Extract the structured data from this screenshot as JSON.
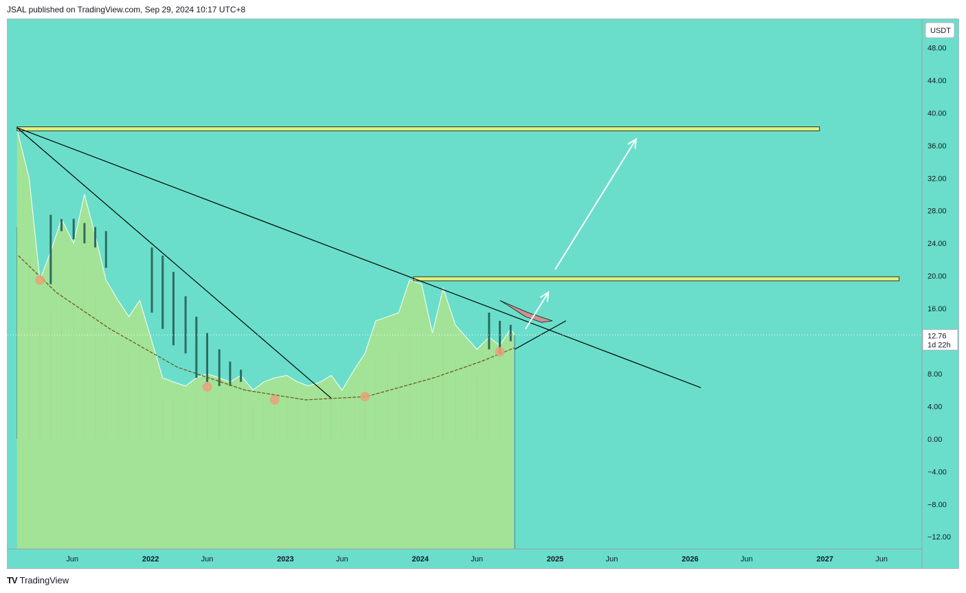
{
  "header": {
    "text": "JSAL published on TradingView.com, Sep 29, 2024 10:17 UTC+8"
  },
  "footer": {
    "logo": "TV",
    "text": "TradingView"
  },
  "colors": {
    "background": "#6adecb",
    "area_fill": "#a6e393",
    "area_line": "#ffffff",
    "candle": "#2c6a60",
    "wick_line": "#5c4a1e",
    "trend_line": "#000000",
    "zone_fill": "#dff07a",
    "zone_border": "#333333",
    "arc_curve": "#6b5a1e",
    "marker": "#e8a27a",
    "arrow": "#ffffff",
    "shape": "#d48a8a"
  },
  "chart_data": {
    "type": "area",
    "currency_label": "USDT",
    "ylim": [
      -13.5,
      51.5
    ],
    "y_ticks": [
      "48.00",
      "44.00",
      "40.00",
      "36.00",
      "32.00",
      "28.00",
      "24.00",
      "20.00",
      "16.00",
      "12.00",
      "8.00",
      "4.00",
      "0.00",
      "−4.00",
      "−8.00",
      "−12.00"
    ],
    "x_ticks": [
      {
        "label": "Jun",
        "t": 2021.42,
        "year": false
      },
      {
        "label": "2022",
        "t": 2022.0,
        "year": true
      },
      {
        "label": "Jun",
        "t": 2022.42,
        "year": false
      },
      {
        "label": "2023",
        "t": 2023.0,
        "year": true
      },
      {
        "label": "Jun",
        "t": 2023.42,
        "year": false
      },
      {
        "label": "2024",
        "t": 2024.0,
        "year": true
      },
      {
        "label": "Jun",
        "t": 2024.42,
        "year": false
      },
      {
        "label": "2025",
        "t": 2025.0,
        "year": true
      },
      {
        "label": "Jun",
        "t": 2025.42,
        "year": false
      },
      {
        "label": "2026",
        "t": 2026.0,
        "year": true
      },
      {
        "label": "Jun",
        "t": 2026.42,
        "year": false
      },
      {
        "label": "2027",
        "t": 2027.0,
        "year": true
      },
      {
        "label": "Jun",
        "t": 2027.42,
        "year": false
      }
    ],
    "last_price": "12.76",
    "countdown": "1d 22h",
    "series": [
      {
        "t": [
          2021.01,
          2021.1,
          2021.18,
          2021.26,
          2021.34,
          2021.43,
          2021.51,
          2021.59,
          2021.67,
          2021.76,
          2021.84,
          2021.92,
          2022.01,
          2022.09,
          2022.17,
          2022.26,
          2022.34,
          2022.42,
          2022.51,
          2022.59,
          2022.67,
          2022.76,
          2022.84,
          2022.92,
          2023.01,
          2023.09,
          2023.17,
          2023.26,
          2023.34,
          2023.42,
          2023.51,
          2023.59,
          2023.67,
          2023.76,
          2023.84,
          2023.92,
          2024.01,
          2024.09,
          2024.17,
          2024.26,
          2024.34,
          2024.42,
          2024.51,
          2024.59,
          2024.67,
          2024.7
        ],
        "values": [
          38.0,
          32.0,
          19.5,
          23.0,
          27.0,
          24.0,
          30.0,
          25.0,
          19.5,
          17.0,
          15.0,
          17.0,
          12.0,
          7.5,
          7.0,
          6.5,
          7.5,
          8.0,
          7.5,
          7.0,
          7.8,
          6.0,
          7.0,
          7.5,
          7.8,
          7.0,
          6.5,
          7.0,
          7.8,
          6.0,
          8.5,
          10.5,
          14.5,
          15.0,
          15.5,
          19.5,
          19.0,
          13.0,
          18.5,
          14.0,
          12.5,
          11.0,
          12.5,
          11.5,
          13.5,
          12.76
        ]
      }
    ],
    "candles": [
      {
        "t": 2021.26,
        "low": 19.0,
        "high": 27.5
      },
      {
        "t": 2021.34,
        "low": 25.5,
        "high": 27.0
      },
      {
        "t": 2021.43,
        "low": 24.5,
        "high": 27.0
      },
      {
        "t": 2021.51,
        "low": 24.0,
        "high": 26.5
      },
      {
        "t": 2021.59,
        "low": 23.5,
        "high": 26.0
      },
      {
        "t": 2021.67,
        "low": 21.0,
        "high": 25.5
      },
      {
        "t": 2022.01,
        "low": 15.5,
        "high": 23.5
      },
      {
        "t": 2022.09,
        "low": 13.5,
        "high": 22.5
      },
      {
        "t": 2022.17,
        "low": 11.5,
        "high": 20.5
      },
      {
        "t": 2022.26,
        "low": 10.5,
        "high": 17.5
      },
      {
        "t": 2022.34,
        "low": 7.5,
        "high": 15.0
      },
      {
        "t": 2022.42,
        "low": 7.0,
        "high": 13.0
      },
      {
        "t": 2022.51,
        "low": 6.5,
        "high": 11.0
      },
      {
        "t": 2022.59,
        "low": 6.5,
        "high": 9.5
      },
      {
        "t": 2022.67,
        "low": 7.0,
        "high": 8.5
      },
      {
        "t": 2024.51,
        "low": 11.0,
        "high": 15.5
      },
      {
        "t": 2024.59,
        "low": 10.5,
        "high": 14.5
      },
      {
        "t": 2024.67,
        "low": 12.0,
        "high": 14.0
      }
    ],
    "volume_bars_t": [
      2021.01,
      2021.1,
      2021.18,
      2021.26,
      2021.34,
      2021.43,
      2021.51,
      2021.59,
      2021.67,
      2021.76,
      2021.84,
      2021.92,
      2022.01,
      2022.09,
      2022.17,
      2022.26,
      2022.34,
      2022.42,
      2022.51,
      2022.59,
      2022.67,
      2022.76,
      2022.84,
      2022.92,
      2023.01,
      2023.09,
      2023.17,
      2023.26,
      2023.34,
      2023.42,
      2023.51,
      2023.59,
      2023.67,
      2023.76,
      2023.84,
      2023.92,
      2024.01,
      2024.09,
      2024.17,
      2024.26,
      2024.34,
      2024.42,
      2024.51,
      2024.59
    ],
    "zones": [
      {
        "t1": 2021.01,
        "t2": 2026.96,
        "y1": 37.8,
        "y2": 38.3
      },
      {
        "t1": 2023.95,
        "t2": 2027.55,
        "y1": 19.4,
        "y2": 19.9
      }
    ],
    "trend_lines": [
      {
        "t1": 2021.01,
        "y1": 38.2,
        "t2": 2026.08,
        "y2": 6.3
      },
      {
        "t1": 2021.01,
        "y1": 38.2,
        "t2": 2023.34,
        "y2": 5.0
      },
      {
        "t1": 2024.7,
        "y1": 11.0,
        "t2": 2025.08,
        "y2": 14.5
      }
    ],
    "arrows": [
      {
        "t1": 2025.0,
        "y1": 20.8,
        "t2": 2025.6,
        "y2": 36.8
      },
      {
        "t1": 2024.78,
        "y1": 13.5,
        "t2": 2024.95,
        "y2": 18.0
      }
    ],
    "arc": [
      {
        "t": 2021.02,
        "y": 22.5
      },
      {
        "t": 2021.3,
        "y": 18.0
      },
      {
        "t": 2021.7,
        "y": 13.5
      },
      {
        "t": 2022.2,
        "y": 8.8
      },
      {
        "t": 2022.7,
        "y": 6.0
      },
      {
        "t": 2023.15,
        "y": 4.8
      },
      {
        "t": 2023.6,
        "y": 5.2
      },
      {
        "t": 2024.1,
        "y": 7.5
      },
      {
        "t": 2024.45,
        "y": 9.5
      },
      {
        "t": 2024.7,
        "y": 11.2
      }
    ],
    "markers": [
      {
        "t": 2021.18,
        "y": 19.5
      },
      {
        "t": 2022.42,
        "y": 6.4
      },
      {
        "t": 2022.92,
        "y": 4.8
      },
      {
        "t": 2023.59,
        "y": 5.2
      },
      {
        "t": 2024.59,
        "y": 10.7
      }
    ],
    "shape": [
      {
        "t": 2024.59,
        "y": 17.0
      },
      {
        "t": 2024.8,
        "y": 15.5
      },
      {
        "t": 2024.98,
        "y": 14.5
      },
      {
        "t": 2024.9,
        "y": 14.3
      },
      {
        "t": 2024.78,
        "y": 15.0
      },
      {
        "t": 2024.65,
        "y": 16.4
      }
    ]
  }
}
